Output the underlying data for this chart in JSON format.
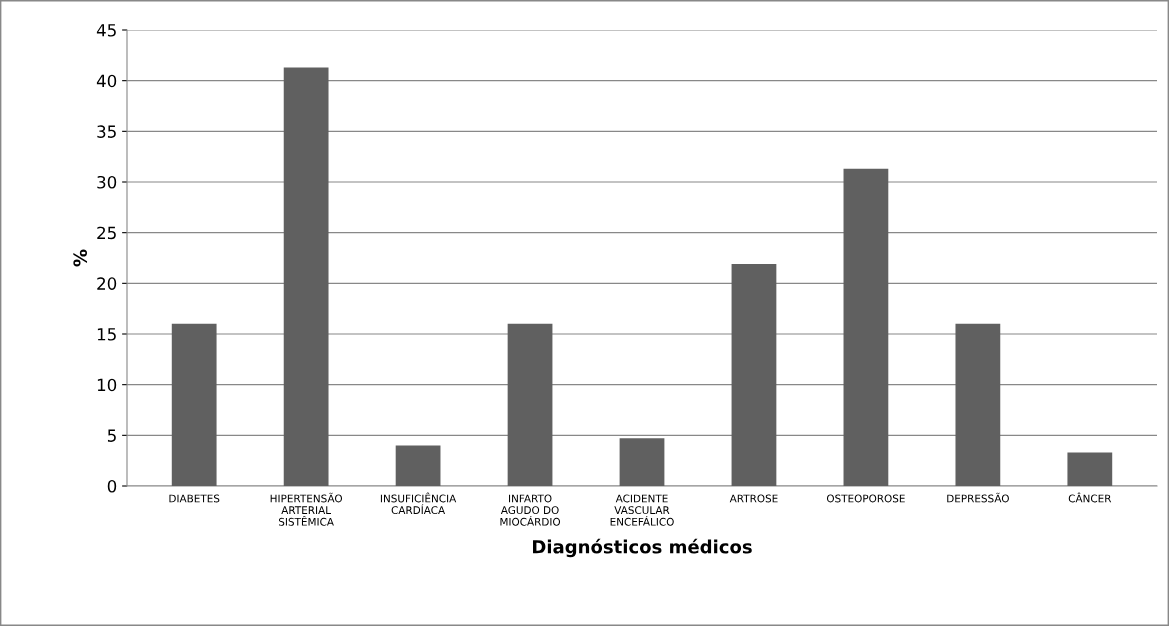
{
  "chart_data": {
    "type": "bar",
    "xlabel": "Diagnósticos médicos",
    "ylabel": "%",
    "categories": [
      "DIABETES",
      "HIPERTENSÃO\nARTERIAL\nSISTÊMICA",
      "INSUFICIÊNCIA\nCARDÍACA",
      "INFARTO\nAGUDO DO\nMIOCÁRDIO",
      "ACIDENTE\nVASCULAR\nENCEFÁLICO",
      "ARTROSE",
      "OSTEOPOROSE",
      "DEPRESSÃO",
      "CÂNCER"
    ],
    "values": [
      16,
      41.3,
      4,
      16,
      4.7,
      21.9,
      31.3,
      16,
      3.3
    ],
    "color": "#606060",
    "ylim": [
      0,
      45
    ],
    "yticks": [
      0,
      5,
      10,
      15,
      20,
      25,
      30,
      35,
      40,
      45
    ],
    "grid": "y",
    "legend": false
  }
}
